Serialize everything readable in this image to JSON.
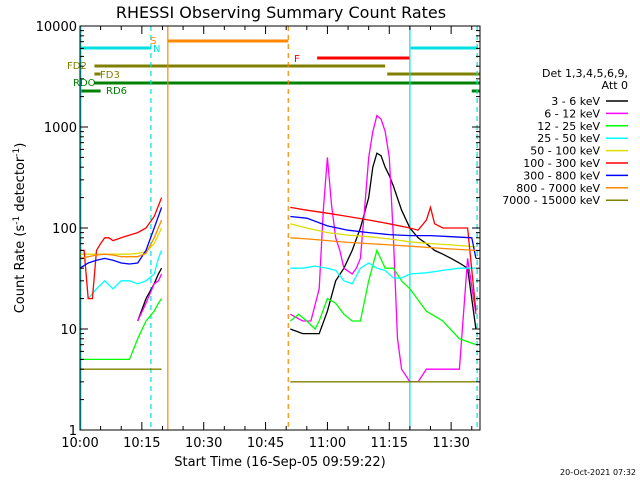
{
  "chart_data": {
    "type": "line",
    "title": "RHESSI Observing Summary Count Rates",
    "xlabel": "Start Time (16-Sep-05 09:59:22)",
    "ylabel": "Count Rate (s⁻¹ detector⁻¹)",
    "ylabel_main": "Count Rate (s",
    "ylabel_sup1": "-1",
    "ylabel_mid": " detector",
    "ylabel_sup2": "-1",
    "ylabel_end": ")",
    "yscale": "log",
    "xlim": [
      0,
      97
    ],
    "ylim": [
      1,
      10000
    ],
    "xticks": [
      0,
      15,
      30,
      45,
      60,
      75,
      90
    ],
    "xtick_labels": [
      "10:00",
      "10:15",
      "10:30",
      "10:45",
      "11:00",
      "11:15",
      "11:30"
    ],
    "yticks": [
      1,
      10,
      100,
      1000,
      10000
    ],
    "ytick_labels": [
      "1",
      "10",
      "100",
      "1000",
      "10000"
    ],
    "legend_header": [
      "Det 1,3,4,5,6,9,",
      "Att 0"
    ],
    "legend_position": "right",
    "timestamp": "20-Oct-2021 07:32",
    "series": [
      {
        "name": "3 - 6 keV",
        "color": "#000000",
        "segments": [
          {
            "x": [
              14,
              16,
              18,
              19,
              19.8
            ],
            "y": [
              12,
              20,
              28,
              35,
              40
            ]
          },
          {
            "x": [
              51,
              54,
              56,
              58,
              60,
              62,
              64,
              66,
              68,
              70,
              71,
              72,
              73,
              74,
              75,
              76,
              78,
              80,
              82,
              84,
              86,
              88,
              90,
              92,
              94,
              96
            ],
            "y": [
              10,
              9,
              9,
              9,
              15,
              30,
              40,
              60,
              100,
              200,
              400,
              550,
              520,
              400,
              330,
              260,
              150,
              100,
              80,
              70,
              60,
              55,
              50,
              45,
              40,
              10
            ]
          }
        ]
      },
      {
        "name": "6 - 12 keV",
        "color": "#ff00ff",
        "segments": [
          {
            "x": [
              14,
              16,
              18,
              19,
              19.8
            ],
            "y": [
              12,
              18,
              28,
              30,
              35
            ]
          },
          {
            "x": [
              51,
              54,
              56,
              58,
              59,
              60,
              61,
              62,
              63,
              64,
              66,
              67,
              68,
              69,
              70,
              71,
              72,
              73,
              74,
              75,
              76,
              77,
              78,
              80,
              82,
              84,
              86,
              88,
              90,
              92,
              94,
              96
            ],
            "y": [
              14,
              12,
              12,
              25,
              150,
              500,
              170,
              80,
              60,
              40,
              35,
              40,
              50,
              150,
              500,
              900,
              1300,
              1200,
              900,
              500,
              80,
              8,
              4,
              3,
              3,
              4,
              4,
              4,
              4,
              4,
              50,
              14
            ]
          }
        ]
      },
      {
        "name": "12 - 25 keV",
        "color": "#00ff00",
        "segments": [
          {
            "x": [
              0,
              5,
              10,
              12,
              14,
              16,
              18,
              19,
              19.8
            ],
            "y": [
              5,
              5,
              5,
              5,
              8,
              12,
              15,
              18,
              20
            ]
          },
          {
            "x": [
              51,
              53,
              55,
              57,
              58,
              60,
              62,
              64,
              66,
              68,
              70,
              72,
              74,
              76,
              78,
              80,
              84,
              88,
              92,
              96
            ],
            "y": [
              12,
              14,
              12,
              10,
              12,
              20,
              18,
              14,
              12,
              12,
              30,
              60,
              40,
              40,
              30,
              25,
              15,
              12,
              8,
              7
            ]
          }
        ]
      },
      {
        "name": "25 - 50 keV",
        "color": "#00ffff",
        "segments": [
          {
            "x": [
              2,
              4,
              6,
              8,
              10,
              12,
              14,
              16,
              18,
              19,
              19.8
            ],
            "y": [
              20,
              25,
              30,
              25,
              30,
              30,
              28,
              30,
              35,
              50,
              60
            ]
          },
          {
            "x": [
              51,
              54,
              57,
              60,
              62,
              64,
              66,
              68,
              70,
              72,
              74,
              76,
              78,
              80,
              84,
              88,
              92,
              96
            ],
            "y": [
              40,
              40,
              42,
              40,
              38,
              30,
              28,
              40,
              45,
              40,
              38,
              32,
              32,
              35,
              36,
              38,
              40,
              40
            ]
          }
        ]
      },
      {
        "name": "50 - 100 keV",
        "color": "#dddd00",
        "segments": [
          {
            "x": [
              0,
              2,
              4,
              6,
              8,
              10,
              12,
              14,
              16,
              18,
              19.8
            ],
            "y": [
              55,
              55,
              55,
              55,
              55,
              55,
              55,
              56,
              58,
              70,
              100
            ]
          },
          {
            "x": [
              51,
              55,
              60,
              65,
              70,
              75,
              80,
              85,
              90,
              96
            ],
            "y": [
              110,
              100,
              90,
              85,
              82,
              78,
              73,
              70,
              68,
              65
            ]
          }
        ]
      },
      {
        "name": "100 - 300 keV",
        "color": "#ff0000",
        "segments": [
          {
            "x": [
              0,
              1,
              2,
              3,
              4,
              5,
              6,
              7,
              8,
              10,
              12,
              14,
              16,
              18,
              19.8
            ],
            "y": [
              60,
              60,
              20,
              20,
              60,
              70,
              80,
              80,
              75,
              80,
              85,
              90,
              100,
              130,
              200
            ]
          },
          {
            "x": [
              51,
              55,
              60,
              65,
              70,
              75,
              80,
              82,
              84,
              85,
              86,
              88,
              90,
              92,
              94,
              96
            ],
            "y": [
              160,
              150,
              140,
              130,
              120,
              110,
              100,
              95,
              120,
              160,
              110,
              100,
              100,
              100,
              100,
              15
            ]
          }
        ]
      },
      {
        "name": "300 - 800 keV",
        "color": "#0000ff",
        "segments": [
          {
            "x": [
              0,
              2,
              4,
              6,
              8,
              10,
              12,
              14,
              16,
              18,
              19.8
            ],
            "y": [
              40,
              45,
              48,
              50,
              48,
              45,
              44,
              45,
              60,
              100,
              160
            ]
          },
          {
            "x": [
              51,
              55,
              60,
              65,
              70,
              75,
              80,
              85,
              90,
              95,
              96
            ],
            "y": [
              130,
              125,
              105,
              95,
              90,
              86,
              84,
              84,
              82,
              80,
              50
            ]
          }
        ]
      },
      {
        "name": "800 - 7000 keV",
        "color": "#ff8800",
        "segments": [
          {
            "x": [
              0,
              2,
              4,
              6,
              8,
              10,
              12,
              14,
              16,
              18,
              19.8
            ],
            "y": [
              50,
              52,
              54,
              55,
              54,
              52,
              52,
              52,
              56,
              80,
              120
            ]
          },
          {
            "x": [
              51,
              55,
              60,
              65,
              70,
              75,
              80,
              85,
              90,
              96
            ],
            "y": [
              80,
              78,
              75,
              72,
              70,
              68,
              66,
              64,
              62,
              60
            ]
          }
        ]
      },
      {
        "name": "7000 - 15000 keV",
        "color": "#808000",
        "segments": [
          {
            "x": [
              0,
              5,
              10,
              15,
              19.8
            ],
            "y": [
              4,
              4,
              4,
              4,
              4
            ]
          },
          {
            "x": [
              51,
              55,
              60,
              65,
              70,
              75,
              80,
              85,
              90,
              96
            ],
            "y": [
              3,
              3,
              3,
              3,
              3,
              3,
              3,
              3,
              3,
              3
            ]
          }
        ]
      }
    ],
    "vlines": [
      {
        "x": 0.2,
        "color": "#00e0e0",
        "style": "solid"
      },
      {
        "x": 17.2,
        "color": "#00e0e0",
        "style": "dashed"
      },
      {
        "x": 21.3,
        "color": "#ff8800",
        "style": "solid"
      },
      {
        "x": 50.5,
        "color": "#ff8800",
        "style": "dashed"
      },
      {
        "x": 80.0,
        "color": "#00e0e0",
        "style": "solid"
      },
      {
        "x": 96.3,
        "color": "#00e0e0",
        "style": "dashed"
      }
    ],
    "flag_bars": [
      {
        "label": "",
        "color": "#00e0e0",
        "x1": 0.3,
        "x2": 17.2,
        "level": 1
      },
      {
        "label": "",
        "color": "#00e0e0",
        "x1": 80.2,
        "x2": 96.5,
        "level": 1
      },
      {
        "label": "S",
        "color": "#ff8800",
        "x1": 21.3,
        "x2": 50.5,
        "level": 0
      },
      {
        "label": "F",
        "color": "#ff0000",
        "x1": 57.5,
        "x2": 80.0,
        "level": 2
      },
      {
        "label": "FD2",
        "color": "#808000",
        "x1": 3.5,
        "x2": 74.0,
        "level": 3
      },
      {
        "label": "FD3",
        "color": "#808000",
        "x1": 3.5,
        "x2": 5.0,
        "level": 4
      },
      {
        "label": "FD3",
        "color": "#808000",
        "x1": 74.5,
        "x2": 97.0,
        "level": 4
      },
      {
        "label": "RDO",
        "color": "#008000",
        "x1": 3.5,
        "x2": 97.0,
        "level": 5
      },
      {
        "label": "RD6",
        "color": "#008000",
        "x1": 0.3,
        "x2": 5.0,
        "level": 6
      },
      {
        "label": "",
        "color": "#008000",
        "x1": 95.0,
        "x2": 97.0,
        "level": 6
      }
    ],
    "flag_labels": [
      {
        "text": "S",
        "color": "#ff8800"
      },
      {
        "text": "N",
        "color": "#00e0e0"
      },
      {
        "text": "F",
        "color": "#ff0000"
      },
      {
        "text": "FD2",
        "color": "#808000"
      },
      {
        "text": "FD3",
        "color": "#808000"
      },
      {
        "text": "RDO",
        "color": "#008000"
      },
      {
        "text": "RD6",
        "color": "#008000"
      }
    ]
  }
}
